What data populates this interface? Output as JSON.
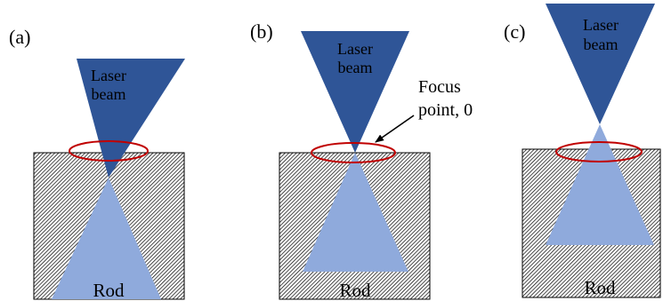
{
  "panels": [
    {
      "label": "(a)",
      "beam_label_line1": "Laser",
      "beam_label_line2": "beam",
      "rod_label": "Rod"
    },
    {
      "label": "(b)",
      "beam_label_line1": "Laser",
      "beam_label_line2": "beam",
      "rod_label": "Rod"
    },
    {
      "label": "(c)",
      "beam_label_line1": "Laser",
      "beam_label_line2": "beam",
      "rod_label": "Rod"
    }
  ],
  "annotation": {
    "line1": "Focus",
    "line2": "point, 0"
  },
  "colors": {
    "beam_dark": "#2f5597",
    "beam_light": "#8faadc",
    "ellipse": "#c00000",
    "hatch": "#000000",
    "arrow": "#000000"
  }
}
